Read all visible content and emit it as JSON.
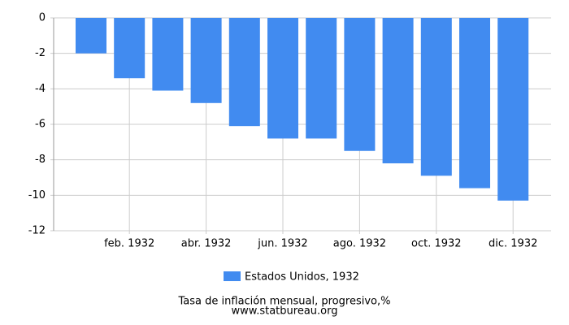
{
  "chart_data": {
    "type": "bar",
    "categories": [
      null,
      "feb. 1932",
      null,
      "abr. 1932",
      null,
      "jun. 1932",
      null,
      "ago. 1932",
      null,
      "oct. 1932",
      null,
      "dic. 1932"
    ],
    "series": [
      {
        "name": "Estados Unidos, 1932",
        "color": "#418bf0",
        "values": [
          -2.0,
          -3.4,
          -4.1,
          -4.8,
          -6.1,
          -6.8,
          -6.8,
          -7.5,
          -8.2,
          -8.9,
          -9.6,
          -10.3
        ]
      }
    ],
    "ylim": [
      -12,
      0
    ],
    "yticks": [
      0,
      -2,
      -4,
      -6,
      -8,
      -10,
      -12
    ],
    "grid": true,
    "footer": [
      "Tasa de inflación mensual, progresivo,%",
      "www.statbureau.org"
    ]
  }
}
